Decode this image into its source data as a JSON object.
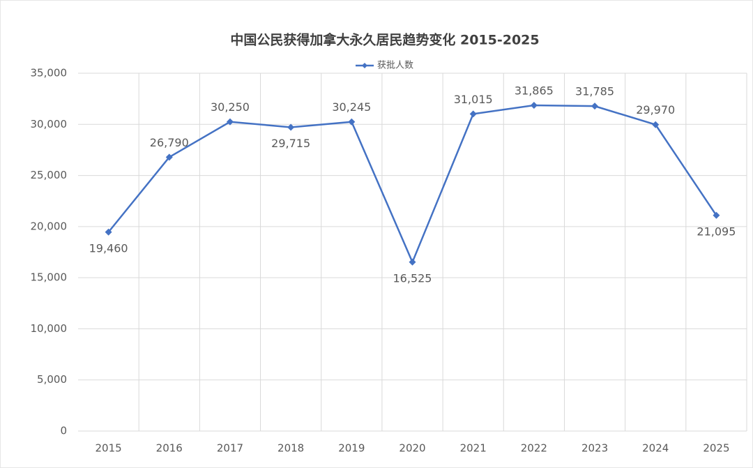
{
  "chart_data": {
    "type": "line",
    "title": "中国公民获得加拿大永久居民趋势变化 2015-2025",
    "categories": [
      "2015",
      "2016",
      "2017",
      "2018",
      "2019",
      "2020",
      "2021",
      "2022",
      "2023",
      "2024",
      "2025"
    ],
    "series": [
      {
        "name": "获批人数",
        "color": "#4472c4",
        "values": [
          19460,
          26790,
          30250,
          29715,
          30245,
          16525,
          31015,
          31865,
          31785,
          29970,
          21095
        ],
        "value_labels": [
          "19,460",
          "26,790",
          "30,250",
          "29,715",
          "30,245",
          "16,525",
          "31,015",
          "31,865",
          "31,785",
          "29,970",
          "21,095"
        ]
      }
    ],
    "ylim": [
      0,
      35000
    ],
    "yticks": [
      0,
      {
        "value": 5000,
        "label": "5,000"
      },
      {
        "value": 10000,
        "label": "10,000"
      },
      {
        "value": 15000,
        "label": "15,000"
      },
      {
        "value": 20000,
        "label": "20,000"
      },
      {
        "value": 25000,
        "label": "25,000"
      },
      {
        "value": 30000,
        "label": "30,000"
      },
      {
        "value": 35000,
        "label": "35,000"
      }
    ],
    "grid": true,
    "legend": "top"
  }
}
